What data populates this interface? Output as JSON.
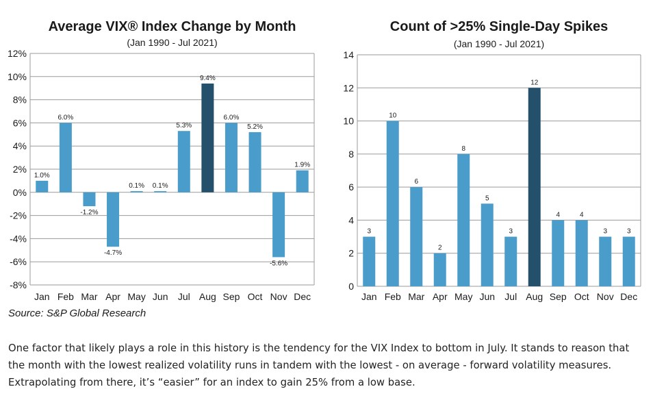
{
  "colors": {
    "bar": "#4a9cca",
    "highlight": "#24506b",
    "grid": "#9a9a9a"
  },
  "chart_data": [
    {
      "type": "bar",
      "title": "Average VIX® Index Change by Month",
      "subtitle": "(Jan 1990 - Jul 2021)",
      "categories": [
        "Jan",
        "Feb",
        "Mar",
        "Apr",
        "May",
        "Jun",
        "Jul",
        "Aug",
        "Sep",
        "Oct",
        "Nov",
        "Dec"
      ],
      "values": [
        1.0,
        6.0,
        -1.2,
        -4.7,
        0.1,
        0.1,
        5.3,
        9.4,
        6.0,
        5.2,
        -5.6,
        1.9
      ],
      "value_labels": [
        "1.0%",
        "6.0%",
        "-1.2%",
        "-4.7%",
        "0.1%",
        "0.1%",
        "5.3%",
        "9.4%",
        "6.0%",
        "5.2%",
        "-5.6%",
        "1.9%"
      ],
      "highlight_index": 7,
      "ylim": [
        -8,
        12
      ],
      "yticks": [
        12,
        10,
        8,
        6,
        4,
        2,
        0,
        -2,
        -4,
        -6,
        -8
      ],
      "ytick_labels": [
        "12%",
        "10%",
        "8%",
        "6%",
        "4%",
        "2%",
        "0%",
        "-2%",
        "-4%",
        "-6%",
        "-8%"
      ],
      "grid": true
    },
    {
      "type": "bar",
      "title": "Count of >25% Single-Day Spikes",
      "subtitle": "(Jan 1990 - Jul 2021)",
      "categories": [
        "Jan",
        "Feb",
        "Mar",
        "Apr",
        "May",
        "Jun",
        "Jul",
        "Aug",
        "Sep",
        "Oct",
        "Nov",
        "Dec"
      ],
      "values": [
        3,
        10,
        6,
        2,
        8,
        5,
        3,
        12,
        4,
        4,
        3,
        3
      ],
      "value_labels": [
        "3",
        "10",
        "6",
        "2",
        "8",
        "5",
        "3",
        "12",
        "4",
        "4",
        "3",
        "3"
      ],
      "highlight_index": 7,
      "ylim": [
        0,
        14
      ],
      "yticks": [
        14,
        12,
        10,
        8,
        6,
        4,
        2,
        0
      ],
      "ytick_labels": [
        "14",
        "12",
        "10",
        "8",
        "6",
        "4",
        "2",
        "0"
      ],
      "grid": true
    }
  ],
  "source": "Source: S&P Global Research",
  "paragraph": "One factor that likely plays a role in this history is the tendency for the VIX Index to bottom in July. It stands to reason that the month with the lowest realized volatility runs in tandem with the lowest - on average - forward volatility measures. Extrapolating from there, it’s “easier” for an index to gain 25% from a low base."
}
